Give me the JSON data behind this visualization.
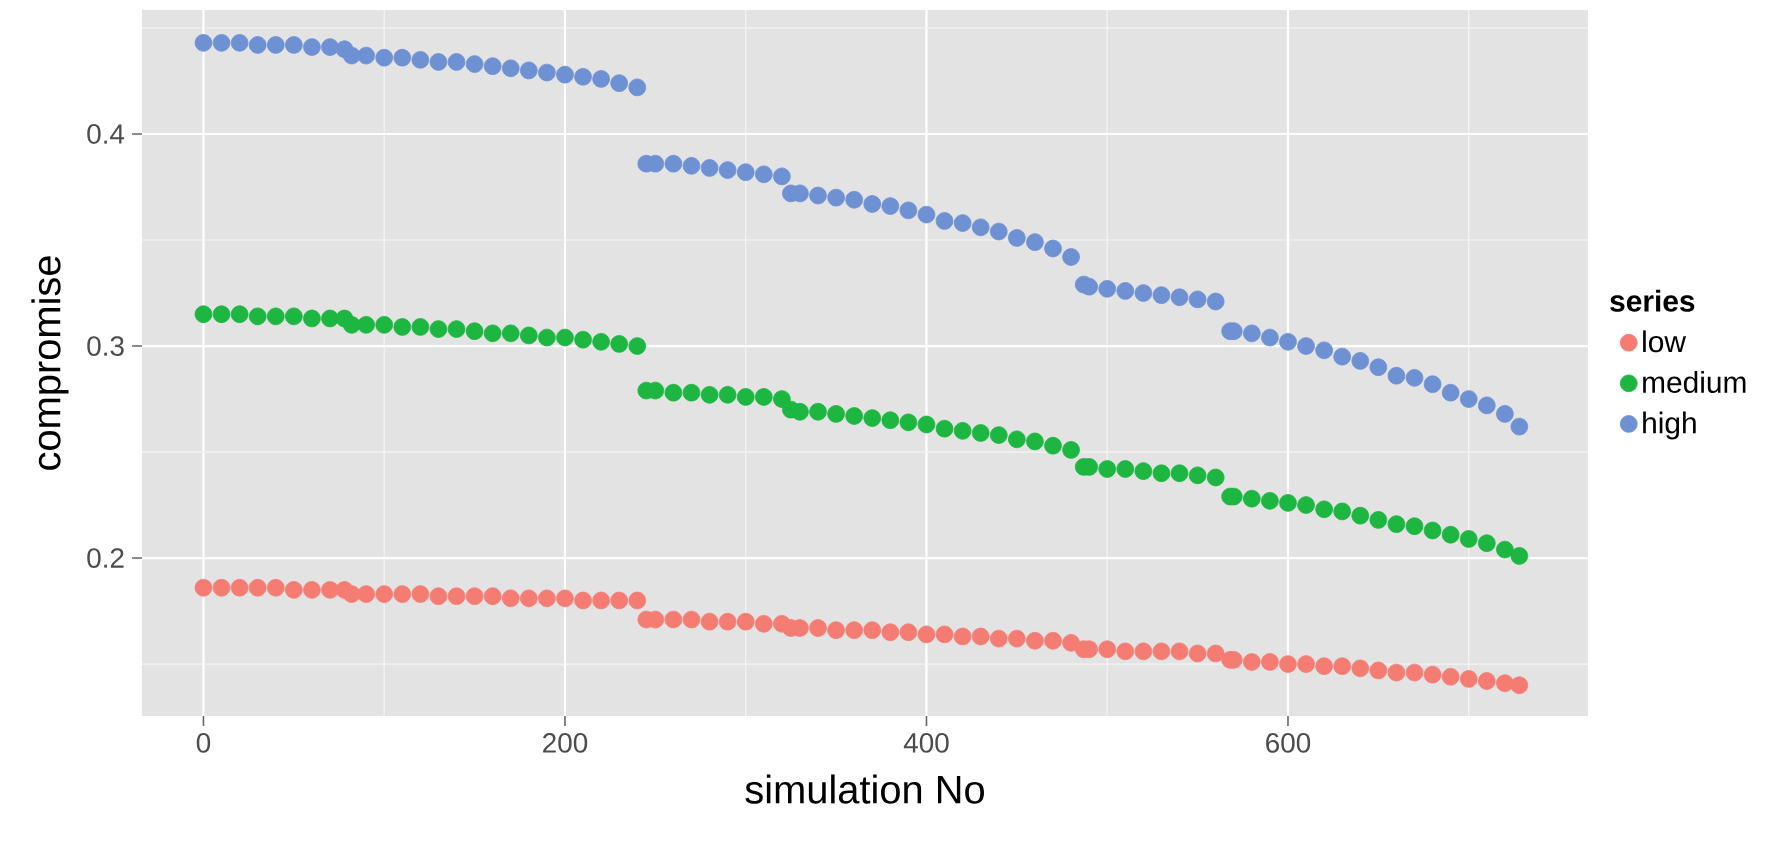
{
  "chart_data": {
    "type": "scatter",
    "xlabel": "simulation No",
    "ylabel": "compromise",
    "legend_title": "series",
    "x": [
      0,
      10,
      20,
      30,
      40,
      50,
      60,
      70,
      78,
      82,
      90,
      100,
      110,
      120,
      130,
      140,
      150,
      160,
      170,
      180,
      190,
      200,
      210,
      220,
      230,
      240,
      245,
      250,
      260,
      270,
      280,
      290,
      300,
      310,
      320,
      325,
      330,
      340,
      350,
      360,
      370,
      380,
      390,
      400,
      410,
      420,
      430,
      440,
      450,
      460,
      470,
      480,
      487,
      490,
      500,
      510,
      520,
      530,
      540,
      550,
      560,
      568,
      570,
      580,
      590,
      600,
      610,
      620,
      630,
      640,
      650,
      660,
      670,
      680,
      690,
      700,
      710,
      720,
      728
    ],
    "series": [
      {
        "name": "low",
        "color": "#f47c73",
        "values": [
          0.186,
          0.186,
          0.186,
          0.186,
          0.186,
          0.185,
          0.185,
          0.185,
          0.185,
          0.183,
          0.183,
          0.183,
          0.183,
          0.183,
          0.182,
          0.182,
          0.182,
          0.182,
          0.181,
          0.181,
          0.181,
          0.181,
          0.18,
          0.18,
          0.18,
          0.18,
          0.171,
          0.171,
          0.171,
          0.171,
          0.17,
          0.17,
          0.17,
          0.169,
          0.169,
          0.167,
          0.167,
          0.167,
          0.166,
          0.166,
          0.166,
          0.165,
          0.165,
          0.164,
          0.164,
          0.163,
          0.163,
          0.162,
          0.162,
          0.161,
          0.161,
          0.16,
          0.157,
          0.157,
          0.157,
          0.156,
          0.156,
          0.156,
          0.156,
          0.155,
          0.155,
          0.152,
          0.152,
          0.151,
          0.151,
          0.15,
          0.15,
          0.149,
          0.149,
          0.148,
          0.147,
          0.146,
          0.146,
          0.145,
          0.144,
          0.143,
          0.142,
          0.141,
          0.14
        ]
      },
      {
        "name": "medium",
        "color": "#1cb641",
        "values": [
          0.315,
          0.315,
          0.315,
          0.314,
          0.314,
          0.314,
          0.313,
          0.313,
          0.313,
          0.31,
          0.31,
          0.31,
          0.309,
          0.309,
          0.308,
          0.308,
          0.307,
          0.306,
          0.306,
          0.305,
          0.304,
          0.304,
          0.303,
          0.302,
          0.301,
          0.3,
          0.279,
          0.279,
          0.278,
          0.278,
          0.277,
          0.277,
          0.276,
          0.276,
          0.275,
          0.27,
          0.269,
          0.269,
          0.268,
          0.267,
          0.266,
          0.265,
          0.264,
          0.263,
          0.261,
          0.26,
          0.259,
          0.258,
          0.256,
          0.255,
          0.253,
          0.251,
          0.243,
          0.243,
          0.242,
          0.242,
          0.241,
          0.24,
          0.24,
          0.239,
          0.238,
          0.229,
          0.229,
          0.228,
          0.227,
          0.226,
          0.225,
          0.223,
          0.222,
          0.22,
          0.218,
          0.216,
          0.215,
          0.213,
          0.211,
          0.209,
          0.207,
          0.204,
          0.201
        ]
      },
      {
        "name": "high",
        "color": "#6e91d3",
        "values": [
          0.443,
          0.443,
          0.443,
          0.442,
          0.442,
          0.442,
          0.441,
          0.441,
          0.44,
          0.437,
          0.437,
          0.436,
          0.436,
          0.435,
          0.434,
          0.434,
          0.433,
          0.432,
          0.431,
          0.43,
          0.429,
          0.428,
          0.427,
          0.426,
          0.424,
          0.422,
          0.386,
          0.386,
          0.386,
          0.385,
          0.384,
          0.383,
          0.382,
          0.381,
          0.38,
          0.372,
          0.372,
          0.371,
          0.37,
          0.369,
          0.367,
          0.366,
          0.364,
          0.362,
          0.359,
          0.358,
          0.356,
          0.354,
          0.351,
          0.349,
          0.346,
          0.342,
          0.329,
          0.328,
          0.327,
          0.326,
          0.325,
          0.324,
          0.323,
          0.322,
          0.321,
          0.307,
          0.307,
          0.306,
          0.304,
          0.302,
          0.3,
          0.298,
          0.295,
          0.293,
          0.29,
          0.286,
          0.285,
          0.282,
          0.278,
          0.275,
          0.272,
          0.268,
          0.262
        ]
      }
    ],
    "xlim": [
      -34,
      766
    ],
    "ylim": [
      0.1255,
      0.4585
    ],
    "xticks": [
      0,
      200,
      400,
      600
    ],
    "yticks": [
      0.2,
      0.3,
      0.4
    ],
    "grid": true,
    "legend": "right",
    "marker": "circle"
  }
}
